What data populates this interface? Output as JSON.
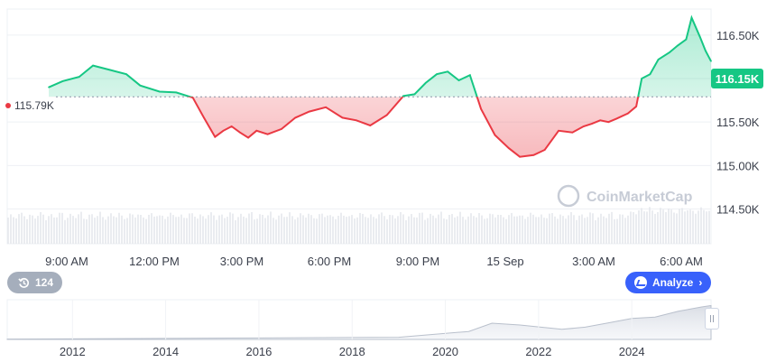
{
  "price_badge": "116.15K",
  "reference_label": "115.79K",
  "watermark": "CoinMarketCap",
  "history_button": "124",
  "analyze_button": "Analyze",
  "colors": {
    "up": "#16c784",
    "down": "#ea3943",
    "accent": "#3861fb"
  },
  "icons": {
    "history": "history-icon",
    "analyze": "analyze-icon",
    "chevron": "chevron-right-icon",
    "range_handle": "grip-handle-icon"
  },
  "chart_data": {
    "type": "area",
    "title": "",
    "xlabel": "",
    "ylabel": "",
    "baseline": 115.79,
    "ylim": [
      114.1,
      116.8
    ],
    "yticks": [
      "114.50K",
      "115.00K",
      "115.50K",
      "116.00K",
      "116.50K"
    ],
    "xticks": [
      "9:00 AM",
      "12:00 PM",
      "3:00 PM",
      "6:00 PM",
      "9:00 PM",
      "15 Sep",
      "3:00 AM",
      "6:00 AM"
    ],
    "x_range": [
      7.4,
      31.3
    ],
    "x_unit": "hours from 14 Sep 00:00",
    "series": [
      {
        "x": [
          7.4,
          7.9,
          8.5,
          9.0,
          9.6,
          10.2,
          10.7,
          11.4,
          12.0,
          12.6,
          13.0,
          13.4,
          13.7,
          14.0,
          14.3,
          14.6,
          14.9,
          15.3,
          15.8,
          16.3,
          16.8,
          17.4,
          18.0,
          18.5,
          19.0,
          19.6,
          20.2,
          20.6,
          21.0,
          21.4,
          21.8,
          22.2,
          22.6,
          23.0,
          23.5,
          24.0,
          24.4,
          24.9,
          25.3,
          25.8,
          26.3,
          26.7,
          27.0,
          27.3,
          27.6,
          27.9,
          28.3,
          28.6,
          28.8,
          29.1,
          29.4,
          29.8,
          30.1,
          30.4,
          30.6,
          30.9,
          31.1,
          31.3
        ],
        "y": [
          115.9,
          115.97,
          116.02,
          116.15,
          116.1,
          116.05,
          115.92,
          115.85,
          115.84,
          115.78,
          115.55,
          115.33,
          115.4,
          115.45,
          115.38,
          115.32,
          115.4,
          115.36,
          115.42,
          115.55,
          115.62,
          115.67,
          115.55,
          115.52,
          115.46,
          115.58,
          115.8,
          115.82,
          115.95,
          116.05,
          116.08,
          115.98,
          116.04,
          115.65,
          115.35,
          115.2,
          115.1,
          115.12,
          115.18,
          115.4,
          115.38,
          115.45,
          115.48,
          115.52,
          115.5,
          115.54,
          115.6,
          115.68,
          116.0,
          116.05,
          116.22,
          116.3,
          116.38,
          116.45,
          116.7,
          116.48,
          116.32,
          116.2
        ]
      }
    ],
    "volume_axis": {
      "xticks": [
        "2012",
        "2014",
        "2016",
        "2018",
        "2020",
        "2022",
        "2024"
      ],
      "x_range": [
        2010.6,
        2025.7
      ],
      "x": [
        2010.6,
        2016.0,
        2019.0,
        2020.5,
        2021.0,
        2021.6,
        2022.5,
        2023.0,
        2023.5,
        2024.0,
        2024.5,
        2025.0,
        2025.5,
        2025.7
      ],
      "y": [
        0.01,
        0.04,
        0.06,
        0.22,
        0.45,
        0.4,
        0.28,
        0.34,
        0.46,
        0.58,
        0.62,
        0.78,
        0.9,
        0.94
      ]
    }
  }
}
